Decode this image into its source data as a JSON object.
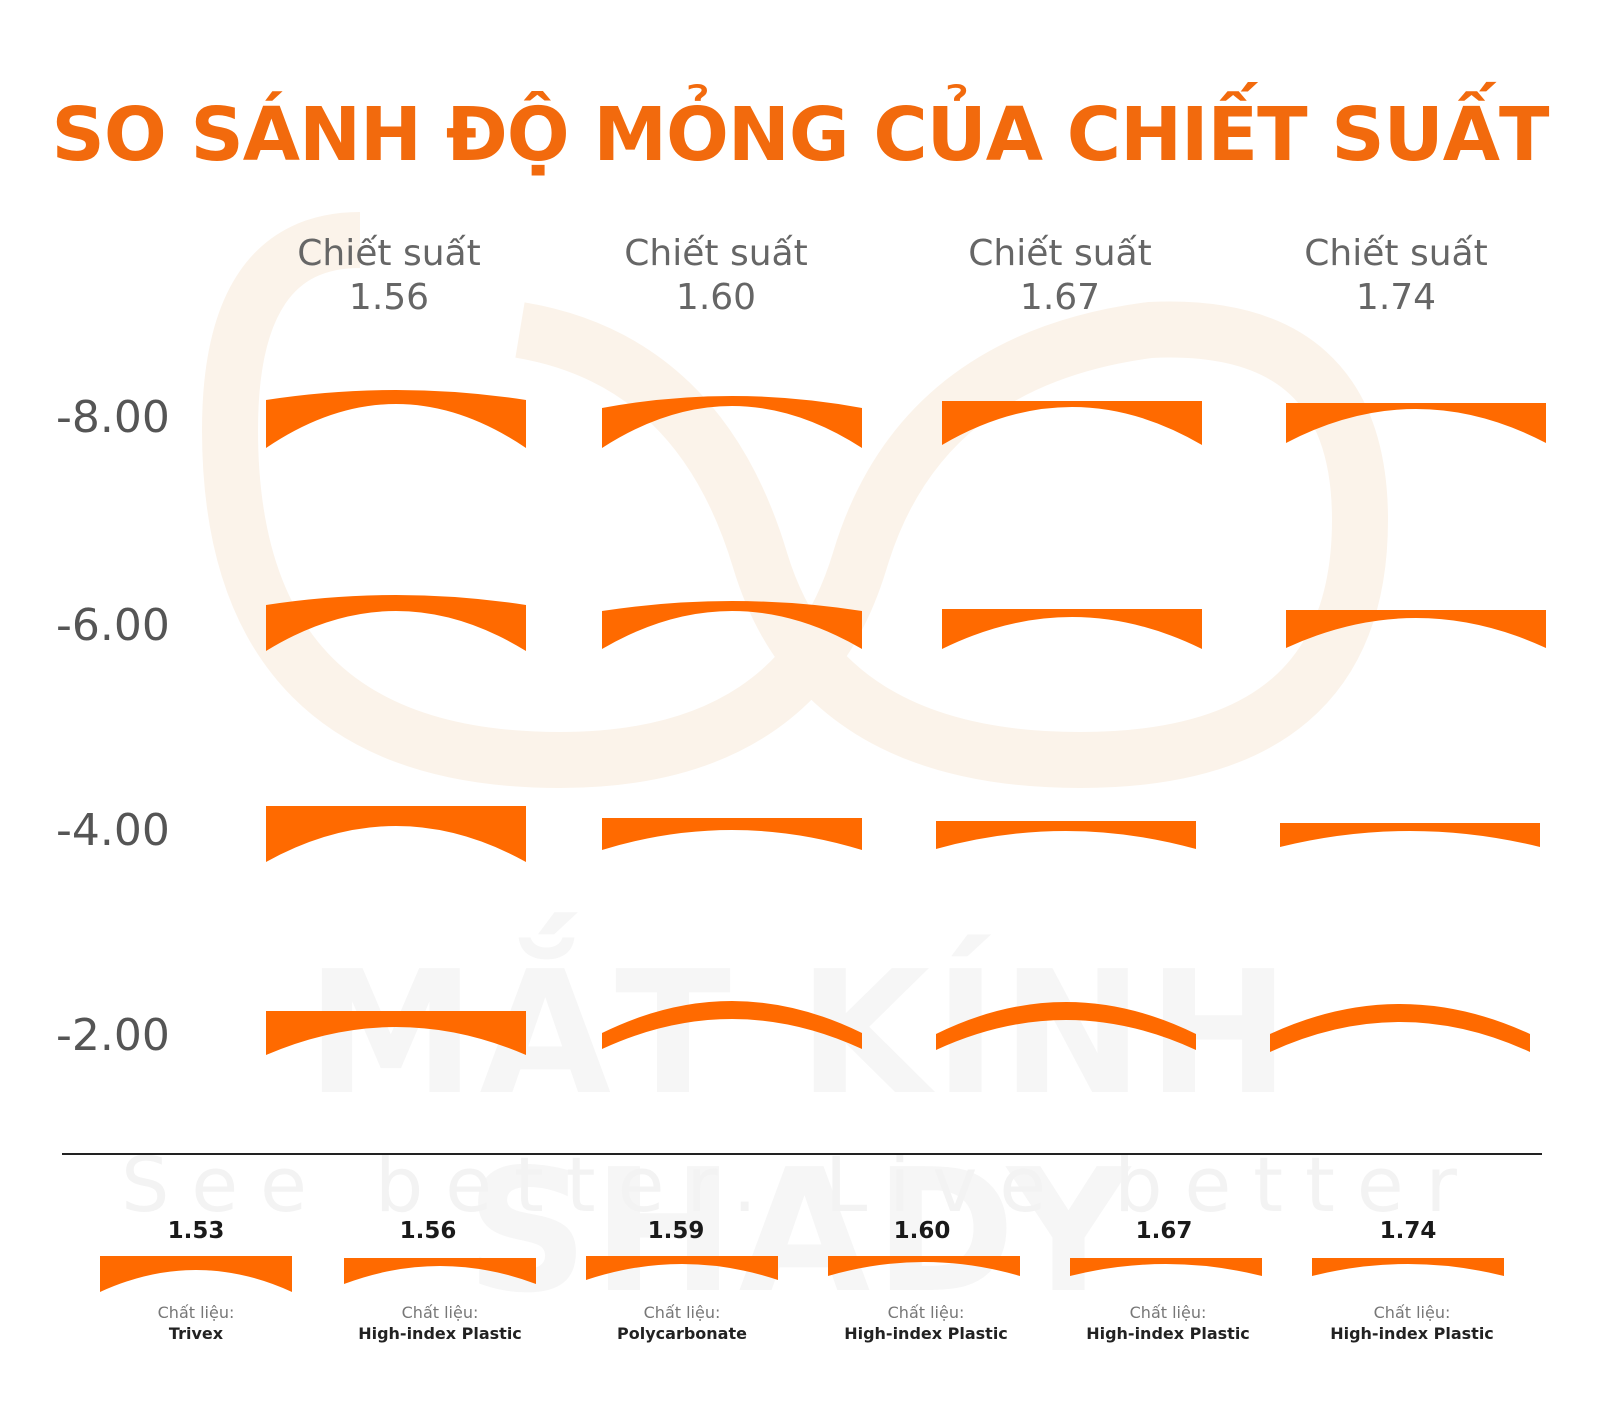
{
  "title": "SO SÁNH ĐỘ MỎNG CỦA CHIẾT SUẤT",
  "watermark": {
    "brand": "MẮT KÍNH SHADY",
    "slogan": "See better. Live better"
  },
  "colors": {
    "accent": "#f26a0d",
    "lens": "#ff6a00"
  },
  "column_heads": [
    {
      "line1": "Chiết suất",
      "line2": "1.56"
    },
    {
      "line1": "Chiết suất",
      "line2": "1.60"
    },
    {
      "line1": "Chiết suất",
      "line2": "1.67"
    },
    {
      "line1": "Chiết suất",
      "line2": "1.74"
    }
  ],
  "rows": [
    {
      "label": "-8.00"
    },
    {
      "label": "-6.00"
    },
    {
      "label": "-4.00"
    },
    {
      "label": "-2.00"
    }
  ],
  "materials": [
    {
      "index": "1.53",
      "caption": "Chất liệu:",
      "name": "Trivex"
    },
    {
      "index": "1.56",
      "caption": "Chất liệu:",
      "name": "High-index Plastic"
    },
    {
      "index": "1.59",
      "caption": "Chất liệu:",
      "name": "Polycarbonate"
    },
    {
      "index": "1.60",
      "caption": "Chất liệu:",
      "name": "High-index Plastic"
    },
    {
      "index": "1.67",
      "caption": "Chất liệu:",
      "name": "High-index Plastic"
    },
    {
      "index": "1.74",
      "caption": "Chất liệu:",
      "name": "High-index Plastic"
    }
  ]
}
